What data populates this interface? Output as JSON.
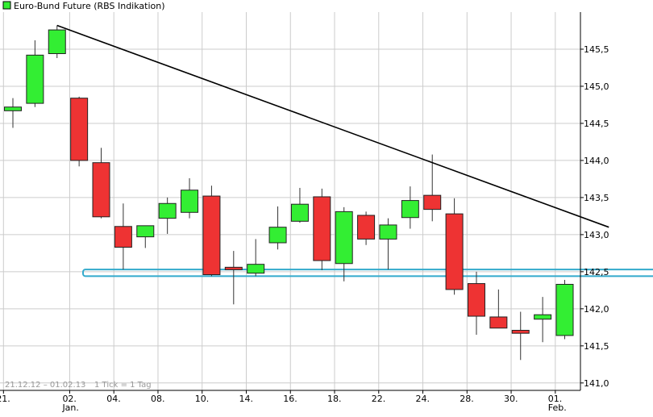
{
  "legend": {
    "label": "Euro-Bund Future (RBS Indikation)",
    "color": "#33ee33"
  },
  "footer": {
    "range": "21.12.12 – 01.02.13",
    "ticks": "1 Tick = 1 Tag"
  },
  "colors": {
    "up": "#33ee33",
    "down": "#ee3333",
    "trend": "#000000",
    "support": "#33aacc",
    "grid": "#cccccc"
  },
  "chart_data": {
    "type": "candlestick",
    "title": "Euro-Bund Future (RBS Indikation)",
    "ylim": [
      140.9,
      146.0
    ],
    "yticks": [
      "141,0",
      "141,5",
      "142,0",
      "142,5",
      "143,0",
      "143,5",
      "144,0",
      "144,5",
      "145,0",
      "145,5"
    ],
    "ytick_values": [
      141.0,
      141.5,
      142.0,
      142.5,
      143.0,
      143.5,
      144.0,
      144.5,
      145.0,
      145.5
    ],
    "xticks": [
      {
        "label": "21.",
        "sub": "",
        "index": 0
      },
      {
        "label": "02.",
        "sub": "Jan.",
        "index": 3
      },
      {
        "label": "04.",
        "sub": "",
        "index": 5
      },
      {
        "label": "08.",
        "sub": "",
        "index": 7
      },
      {
        "label": "10.",
        "sub": "",
        "index": 9
      },
      {
        "label": "14.",
        "sub": "",
        "index": 11
      },
      {
        "label": "16.",
        "sub": "",
        "index": 13
      },
      {
        "label": "18.",
        "sub": "",
        "index": 15
      },
      {
        "label": "22.",
        "sub": "",
        "index": 17
      },
      {
        "label": "24.",
        "sub": "",
        "index": 19
      },
      {
        "label": "28.",
        "sub": "",
        "index": 21
      },
      {
        "label": "30.",
        "sub": "",
        "index": 23
      },
      {
        "label": "01.",
        "sub": "Feb.",
        "index": 25
      }
    ],
    "candles": [
      {
        "open": 144.67,
        "high": 144.84,
        "low": 144.44,
        "close": 144.72
      },
      {
        "open": 144.77,
        "high": 145.62,
        "low": 144.72,
        "close": 145.42
      },
      {
        "open": 145.44,
        "high": 145.82,
        "low": 145.38,
        "close": 145.76
      },
      {
        "open": 144.84,
        "high": 144.86,
        "low": 143.92,
        "close": 144.0
      },
      {
        "open": 143.97,
        "high": 144.17,
        "low": 143.22,
        "close": 143.24
      },
      {
        "open": 143.11,
        "high": 143.42,
        "low": 142.53,
        "close": 142.83
      },
      {
        "open": 142.97,
        "high": 143.12,
        "low": 142.82,
        "close": 143.12
      },
      {
        "open": 143.22,
        "high": 143.5,
        "low": 143.01,
        "close": 143.42
      },
      {
        "open": 143.3,
        "high": 143.76,
        "low": 143.22,
        "close": 143.6
      },
      {
        "open": 143.52,
        "high": 143.66,
        "low": 142.44,
        "close": 142.46
      },
      {
        "open": 142.56,
        "high": 142.78,
        "low": 142.06,
        "close": 142.53
      },
      {
        "open": 142.48,
        "high": 142.94,
        "low": 142.44,
        "close": 142.6
      },
      {
        "open": 142.89,
        "high": 143.38,
        "low": 142.8,
        "close": 143.1
      },
      {
        "open": 143.18,
        "high": 143.63,
        "low": 143.16,
        "close": 143.41
      },
      {
        "open": 143.51,
        "high": 143.62,
        "low": 142.52,
        "close": 142.65
      },
      {
        "open": 142.61,
        "high": 143.37,
        "low": 142.37,
        "close": 143.31
      },
      {
        "open": 143.26,
        "high": 143.31,
        "low": 142.86,
        "close": 142.94
      },
      {
        "open": 142.94,
        "high": 143.22,
        "low": 142.53,
        "close": 143.13
      },
      {
        "open": 143.23,
        "high": 143.65,
        "low": 143.08,
        "close": 143.46
      },
      {
        "open": 143.53,
        "high": 144.08,
        "low": 143.18,
        "close": 143.34
      },
      {
        "open": 143.28,
        "high": 143.49,
        "low": 142.19,
        "close": 142.26
      },
      {
        "open": 142.34,
        "high": 142.5,
        "low": 141.65,
        "close": 141.9
      },
      {
        "open": 141.89,
        "high": 142.26,
        "low": 141.74,
        "close": 141.74
      },
      {
        "open": 141.71,
        "high": 141.96,
        "low": 141.31,
        "close": 141.67
      },
      {
        "open": 141.86,
        "high": 142.16,
        "low": 141.55,
        "close": 141.92
      },
      {
        "open": 141.64,
        "high": 142.39,
        "low": 141.59,
        "close": 142.33
      }
    ],
    "trendline": {
      "start_index": 2.0,
      "start_value": 145.82,
      "end_index": 27.0,
      "end_value": 143.1
    },
    "support_band": {
      "low": 142.44,
      "high": 142.53
    },
    "grid": true,
    "legend_position": "top-left",
    "yaxis_position": "right"
  }
}
